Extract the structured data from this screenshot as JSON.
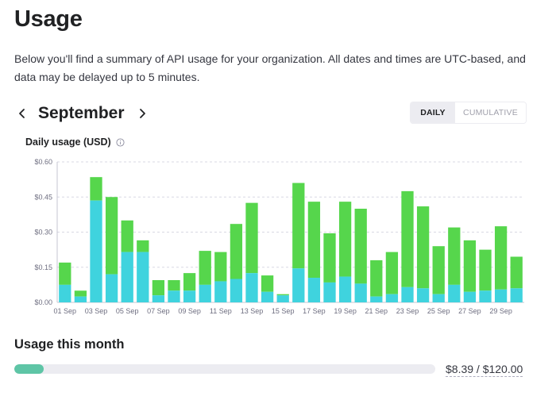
{
  "page": {
    "title": "Usage",
    "description": "Below you'll find a summary of API usage for your organization. All dates and times are UTC-based, and data may be delayed up to 5 minutes."
  },
  "month_nav": {
    "month": "September",
    "prev_icon": "chevron-left-icon",
    "next_icon": "chevron-right-icon"
  },
  "view_toggle": {
    "daily_label": "DAILY",
    "cumulative_label": "CUMULATIVE",
    "selected": "DAILY"
  },
  "chart_heading": {
    "title": "Daily usage (USD)",
    "icon": "info-icon"
  },
  "chart_data": {
    "type": "bar",
    "stacked": true,
    "title": "Daily usage (USD)",
    "xlabel": "",
    "ylabel": "",
    "ylim": [
      0,
      0.6
    ],
    "yticks": [
      "$0.00",
      "$0.15",
      "$0.30",
      "$0.45",
      "$0.60"
    ],
    "ytick_values": [
      0,
      0.15,
      0.3,
      0.45,
      0.6
    ],
    "grid": true,
    "legend": "none",
    "colors": [
      "#3fd3de",
      "#56d64c"
    ],
    "categories": [
      "01 Sep",
      "02 Sep",
      "03 Sep",
      "04 Sep",
      "05 Sep",
      "06 Sep",
      "07 Sep",
      "08 Sep",
      "09 Sep",
      "10 Sep",
      "11 Sep",
      "12 Sep",
      "13 Sep",
      "14 Sep",
      "15 Sep",
      "16 Sep",
      "17 Sep",
      "18 Sep",
      "19 Sep",
      "20 Sep",
      "21 Sep",
      "22 Sep",
      "23 Sep",
      "24 Sep",
      "25 Sep",
      "26 Sep",
      "27 Sep",
      "28 Sep",
      "29 Sep",
      "30 Sep"
    ],
    "xtick_labels": [
      "01 Sep",
      "03 Sep",
      "05 Sep",
      "07 Sep",
      "09 Sep",
      "11 Sep",
      "13 Sep",
      "15 Sep",
      "17 Sep",
      "19 Sep",
      "21 Sep",
      "23 Sep",
      "25 Sep",
      "27 Sep",
      "29 Sep"
    ],
    "series": [
      {
        "values": [
          0.075,
          0.025,
          0.435,
          0.12,
          0.215,
          0.215,
          0.03,
          0.05,
          0.05,
          0.075,
          0.09,
          0.1,
          0.125,
          0.045,
          0.03,
          0.145,
          0.105,
          0.085,
          0.11,
          0.08,
          0.025,
          0.035,
          0.065,
          0.06,
          0.035,
          0.075,
          0.045,
          0.05,
          0.055,
          0.06
        ]
      },
      {
        "values": [
          0.095,
          0.025,
          0.1,
          0.33,
          0.135,
          0.05,
          0.065,
          0.045,
          0.075,
          0.145,
          0.125,
          0.235,
          0.3,
          0.07,
          0.005,
          0.365,
          0.325,
          0.21,
          0.32,
          0.32,
          0.155,
          0.18,
          0.41,
          0.35,
          0.205,
          0.245,
          0.22,
          0.175,
          0.27,
          0.135
        ]
      }
    ]
  },
  "month_usage": {
    "title": "Usage this month",
    "amount_text": "$8.39 / $120.00",
    "used": 8.39,
    "limit": 120.0
  }
}
